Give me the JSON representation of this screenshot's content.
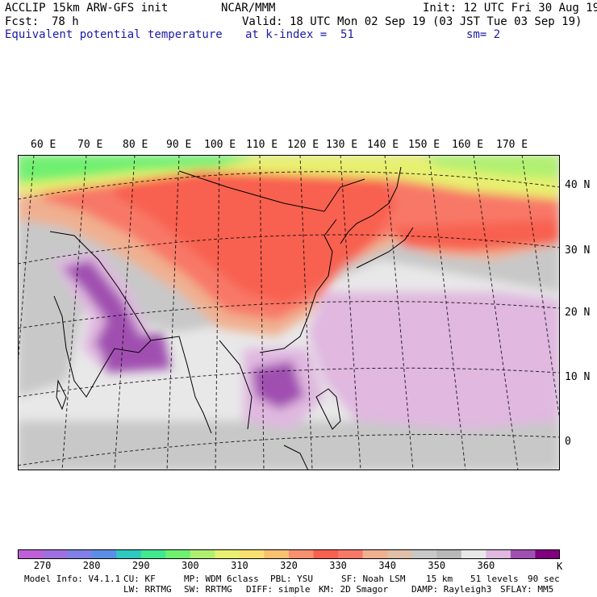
{
  "header": {
    "model": "ACCLIP 15km ARW-GFS init",
    "center": "NCAR/MMM",
    "init": "Init: 12 UTC Fri 30 Aug 19",
    "fcst_label": "Fcst:",
    "fcst_value": "78 h",
    "valid": "Valid: 18 UTC Mon 02 Sep 19 (03 JST Tue 03 Sep 19)",
    "field": "Equivalent potential temperature",
    "level": "at k-index =  51",
    "smooth": "sm= 2"
  },
  "map": {
    "lon_labels": [
      "60 E",
      "70 E",
      "80 E",
      "90 E",
      "100 E",
      "110 E",
      "120 E",
      "130 E",
      "140 E",
      "150 E",
      "160 E",
      "170 E"
    ],
    "lat_labels": [
      "40 N",
      "30 N",
      "20 N",
      "10 N",
      "0"
    ]
  },
  "colorbar": {
    "colors": [
      "#c060d8",
      "#a070e0",
      "#8080e8",
      "#5c8ee6",
      "#30c8c0",
      "#40e890",
      "#70f070",
      "#b0f070",
      "#e8f070",
      "#f8e070",
      "#f8c070",
      "#f89070",
      "#f86050",
      "#f87868",
      "#f0b090",
      "#e0c0a8",
      "#c8c8c8",
      "#b8b8b8",
      "#e8e8e8",
      "#e0b8e0",
      "#a050b0",
      "#800080"
    ],
    "labels": [
      "270",
      "280",
      "290",
      "300",
      "310",
      "320",
      "330",
      "340",
      "350",
      "360"
    ],
    "unit": "K"
  },
  "footer": {
    "line1": [
      "Model Info: V4.1.1",
      "CU: KF",
      "MP: WDM 6class",
      "PBL: YSU",
      "SF: Noah LSM",
      "15 km",
      "51 levels",
      "90 sec"
    ],
    "line2": [
      "LW: RRTMG",
      "SW: RRTMG",
      "DIFF: simple",
      "KM: 2D Smagor",
      "DAMP: Rayleigh3",
      "SFLAY: MM5"
    ]
  }
}
